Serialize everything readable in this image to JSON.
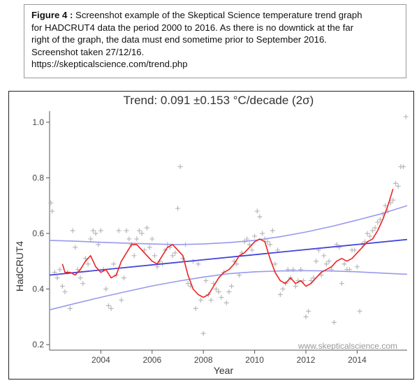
{
  "caption": {
    "label": "Figure 4 :",
    "line1": " Screenshot example of the Skeptical Science temperature trend graph",
    "line2": "for HADCRUT4 data the period 2000 to 2016. As there is no downtick at the far",
    "line3": "right of the graph, the data must end sometime prior to September 2016.",
    "line4": "Screenshot  taken 27/12/16.",
    "line5": "https://skepticalscience.com/trend.php"
  },
  "colors": {
    "trend_line": "#4444dd",
    "ci_band": "#9999ee",
    "moving_average": "#ee2222",
    "scatter": "#b8b8b8",
    "axis": "#555555"
  },
  "chart_data": {
    "type": "scatter",
    "title": "Trend: 0.091 ±0.153 °C/decade (2σ)",
    "xlabel": "Year",
    "ylabel": "HadCRUT4",
    "watermark": "www.skepticalscience.com",
    "xlim": [
      2002.0,
      2015.95
    ],
    "ylim": [
      0.18,
      1.04
    ],
    "x_ticks": [
      2004,
      2006,
      2008,
      2010,
      2012,
      2014
    ],
    "x_tick_labels": [
      "2004",
      "2006",
      "2008",
      "2010",
      "2012",
      "2014"
    ],
    "y_ticks": [
      0.2,
      0.4,
      0.6,
      0.8,
      1.0
    ],
    "y_tick_labels": [
      "0.2",
      "0.4",
      "0.6",
      "0.8",
      "1.0"
    ],
    "series": [
      {
        "name": "Monthly anomaly",
        "kind": "scatter",
        "x": [
          2002.05,
          2002.1,
          2002.2,
          2002.3,
          2002.4,
          2002.5,
          2002.6,
          2002.7,
          2002.8,
          2002.9,
          2003.0,
          2003.1,
          2003.2,
          2003.3,
          2003.4,
          2003.5,
          2003.6,
          2003.7,
          2003.8,
          2003.9,
          2004.0,
          2004.1,
          2004.2,
          2004.3,
          2004.4,
          2004.5,
          2004.6,
          2004.7,
          2004.8,
          2004.9,
          2005.0,
          2005.1,
          2005.2,
          2005.3,
          2005.4,
          2005.5,
          2005.6,
          2005.7,
          2005.8,
          2005.9,
          2006.0,
          2006.1,
          2006.2,
          2006.3,
          2006.4,
          2006.5,
          2006.6,
          2006.7,
          2006.8,
          2006.9,
          2007.0,
          2007.1,
          2007.2,
          2007.3,
          2007.4,
          2007.5,
          2007.6,
          2007.7,
          2007.8,
          2007.9,
          2008.0,
          2008.1,
          2008.2,
          2008.3,
          2008.4,
          2008.5,
          2008.6,
          2008.7,
          2008.8,
          2008.9,
          2009.0,
          2009.1,
          2009.2,
          2009.3,
          2009.4,
          2009.5,
          2009.6,
          2009.7,
          2009.8,
          2009.9,
          2010.0,
          2010.1,
          2010.2,
          2010.3,
          2010.4,
          2010.5,
          2010.6,
          2010.7,
          2010.8,
          2010.9,
          2011.0,
          2011.1,
          2011.2,
          2011.3,
          2011.4,
          2011.5,
          2011.6,
          2011.7,
          2011.8,
          2011.9,
          2012.0,
          2012.1,
          2012.2,
          2012.3,
          2012.4,
          2012.5,
          2012.6,
          2012.7,
          2012.8,
          2012.9,
          2013.0,
          2013.1,
          2013.2,
          2013.3,
          2013.4,
          2013.5,
          2013.6,
          2013.7,
          2013.8,
          2013.9,
          2014.0,
          2014.1,
          2014.2,
          2014.3,
          2014.4,
          2014.5,
          2014.6,
          2014.7,
          2014.8,
          2014.9,
          2015.0,
          2015.1,
          2015.2,
          2015.3,
          2015.4,
          2015.5,
          2015.6,
          2015.7,
          2015.8,
          2015.9
        ],
        "y": [
          0.71,
          0.68,
          0.46,
          0.44,
          0.47,
          0.41,
          0.39,
          0.46,
          0.33,
          0.61,
          0.55,
          0.47,
          0.44,
          0.42,
          0.51,
          0.49,
          0.58,
          0.61,
          0.6,
          0.56,
          0.61,
          0.47,
          0.4,
          0.34,
          0.33,
          0.49,
          0.45,
          0.61,
          0.36,
          0.44,
          0.61,
          0.58,
          0.56,
          0.52,
          0.58,
          0.61,
          0.6,
          0.54,
          0.62,
          0.55,
          0.58,
          0.52,
          0.48,
          0.5,
          0.49,
          0.54,
          0.56,
          0.55,
          0.52,
          0.53,
          0.69,
          0.84,
          0.51,
          0.56,
          0.42,
          0.41,
          0.5,
          0.33,
          0.49,
          0.36,
          0.24,
          0.43,
          0.38,
          0.36,
          0.42,
          0.4,
          0.39,
          0.37,
          0.46,
          0.35,
          0.39,
          0.41,
          0.5,
          0.49,
          0.45,
          0.53,
          0.57,
          0.58,
          0.56,
          0.54,
          0.59,
          0.68,
          0.66,
          0.6,
          0.58,
          0.57,
          0.56,
          0.61,
          0.49,
          0.54,
          0.38,
          0.4,
          0.42,
          0.47,
          0.44,
          0.47,
          0.41,
          0.43,
          0.47,
          0.43,
          0.3,
          0.32,
          0.43,
          0.44,
          0.5,
          0.54,
          0.45,
          0.52,
          0.49,
          0.5,
          0.47,
          0.28,
          0.56,
          0.55,
          0.42,
          0.49,
          0.47,
          0.47,
          0.54,
          0.54,
          0.48,
          0.32,
          0.56,
          0.57,
          0.6,
          0.59,
          0.61,
          0.62,
          0.64,
          0.65,
          0.67,
          0.7,
          0.68,
          0.71,
          0.72,
          0.78,
          0.77,
          0.84,
          0.84,
          1.02
        ]
      },
      {
        "name": "12-month moving average",
        "kind": "line",
        "x": [
          2002.5,
          2002.6,
          2002.8,
          2003.0,
          2003.2,
          2003.4,
          2003.6,
          2003.8,
          2004.0,
          2004.2,
          2004.4,
          2004.6,
          2004.8,
          2005.0,
          2005.2,
          2005.4,
          2005.6,
          2005.8,
          2006.0,
          2006.2,
          2006.4,
          2006.6,
          2006.8,
          2007.0,
          2007.2,
          2007.4,
          2007.6,
          2007.8,
          2008.0,
          2008.2,
          2008.4,
          2008.6,
          2008.8,
          2009.0,
          2009.2,
          2009.4,
          2009.6,
          2009.8,
          2010.0,
          2010.2,
          2010.4,
          2010.6,
          2010.8,
          2011.0,
          2011.2,
          2011.4,
          2011.6,
          2011.8,
          2012.0,
          2012.2,
          2012.4,
          2012.6,
          2012.8,
          2013.0,
          2013.2,
          2013.4,
          2013.6,
          2013.8,
          2014.0,
          2014.2,
          2014.4,
          2014.6,
          2014.8,
          2015.0,
          2015.2,
          2015.4
        ],
        "y": [
          0.49,
          0.46,
          0.46,
          0.45,
          0.47,
          0.5,
          0.52,
          0.48,
          0.46,
          0.47,
          0.44,
          0.45,
          0.5,
          0.53,
          0.56,
          0.56,
          0.54,
          0.52,
          0.5,
          0.49,
          0.52,
          0.55,
          0.56,
          0.54,
          0.52,
          0.45,
          0.4,
          0.38,
          0.37,
          0.38,
          0.41,
          0.44,
          0.46,
          0.47,
          0.49,
          0.52,
          0.53,
          0.55,
          0.57,
          0.58,
          0.57,
          0.51,
          0.46,
          0.43,
          0.42,
          0.44,
          0.42,
          0.43,
          0.41,
          0.42,
          0.44,
          0.46,
          0.47,
          0.48,
          0.5,
          0.51,
          0.5,
          0.51,
          0.53,
          0.55,
          0.57,
          0.58,
          0.61,
          0.65,
          0.7,
          0.76
        ]
      },
      {
        "name": "Linear trend",
        "kind": "line",
        "x": [
          2002.0,
          2015.95
        ],
        "y": [
          0.45,
          0.578
        ]
      },
      {
        "name": "Upper 2σ bound",
        "kind": "line",
        "x": [
          2002.0,
          2003.0,
          2004.0,
          2005.0,
          2006.0,
          2007.0,
          2008.0,
          2009.0,
          2010.0,
          2011.0,
          2012.0,
          2013.0,
          2014.0,
          2015.0,
          2015.95
        ],
        "y": [
          0.575,
          0.572,
          0.568,
          0.565,
          0.562,
          0.56,
          0.562,
          0.567,
          0.575,
          0.588,
          0.605,
          0.625,
          0.648,
          0.672,
          0.7
        ]
      },
      {
        "name": "Lower 2σ bound",
        "kind": "line",
        "x": [
          2002.0,
          2003.0,
          2004.0,
          2005.0,
          2006.0,
          2007.0,
          2008.0,
          2009.0,
          2010.0,
          2011.0,
          2012.0,
          2013.0,
          2014.0,
          2015.0,
          2015.95
        ],
        "y": [
          0.325,
          0.348,
          0.37,
          0.391,
          0.411,
          0.428,
          0.443,
          0.455,
          0.462,
          0.465,
          0.466,
          0.465,
          0.462,
          0.457,
          0.453
        ]
      }
    ]
  }
}
